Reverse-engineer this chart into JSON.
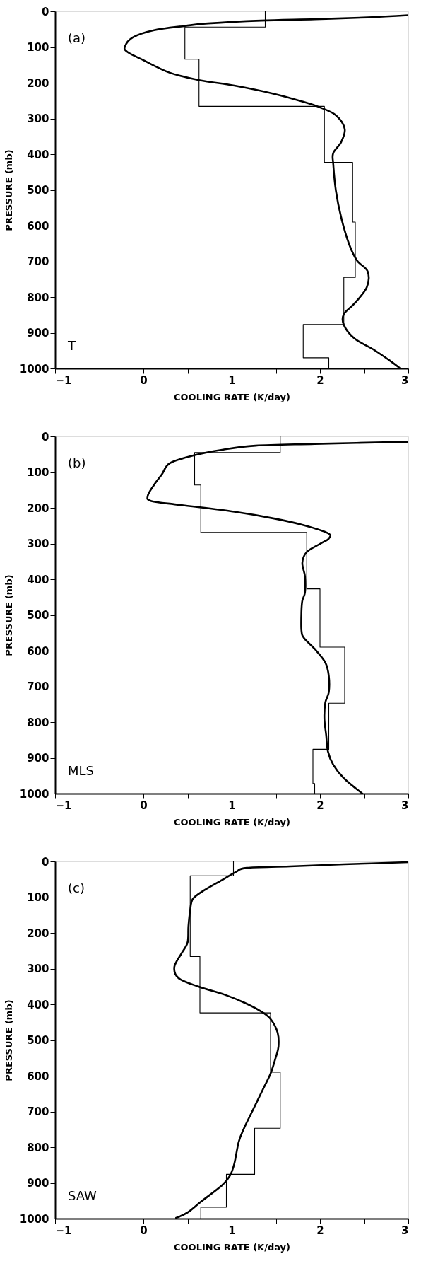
{
  "chart_data": [
    {
      "type": "line",
      "xlabel": "COOLING RATE  (K/day)",
      "ylabel": "PRESSURE  (mb)",
      "annotations": [
        "(a)",
        "T"
      ],
      "xlim": [
        -1,
        3
      ],
      "ylim": [
        1000,
        0
      ],
      "xticks": [
        -1,
        {
          "value": -0.5,
          "label": null
        },
        0,
        {
          "value": 0.5,
          "label": null
        },
        1,
        {
          "value": 1.5,
          "label": null
        },
        2,
        {
          "value": 2.5,
          "label": null
        },
        3
      ],
      "yticks": [
        0,
        100,
        200,
        300,
        400,
        500,
        600,
        700,
        800,
        900,
        1000
      ],
      "line_style": "solid",
      "series": [
        {
          "color": "#000000",
          "x": [
            3.0,
            2.54,
            1.94,
            1.33,
            0.73,
            0.47,
            0.12,
            -0.12,
            -0.21,
            -0.18,
            0.0,
            0.3,
            0.64,
            1.03,
            1.48,
            1.82,
            2.0,
            2.18,
            2.28,
            2.24,
            2.15,
            2.15,
            2.18,
            2.24,
            2.33,
            2.42,
            2.54,
            2.53,
            2.39,
            2.27,
            2.27,
            2.39,
            2.6,
            2.78,
            2.9
          ],
          "values": [
            11,
            17,
            22,
            26,
            34,
            41,
            53,
            73,
            99,
            114,
            137,
            172,
            193,
            208,
            231,
            254,
            269,
            291,
            329,
            366,
            397,
            427,
            502,
            577,
            652,
            698,
            728,
            773,
            818,
            848,
            878,
            916,
            946,
            976,
            998
          ]
        },
        {
          "color": "#000000",
          "x": [
            1.38,
            1.38,
            0.47,
            0.47,
            0.63,
            0.63,
            2.05,
            2.05,
            2.37,
            2.37,
            2.4,
            2.4,
            2.27,
            2.27,
            1.81,
            1.81,
            2.1,
            2.1
          ],
          "values": [
            0,
            44,
            44,
            134,
            134,
            266,
            266,
            423,
            423,
            590,
            590,
            745,
            745,
            877,
            877,
            970,
            970,
            1000
          ]
        }
      ]
    },
    {
      "type": "line",
      "xlabel": "COOLING RATE  (K/day)",
      "ylabel": "PRESSURE  (mb)",
      "annotations": [
        "(b)",
        "MLS"
      ],
      "xlim": [
        -1,
        3
      ],
      "ylim": [
        1000,
        0
      ],
      "xticks": [
        -1,
        {
          "value": -0.5,
          "label": null
        },
        0,
        {
          "value": 0.5,
          "label": null
        },
        1,
        {
          "value": 1.5,
          "label": null
        },
        2,
        {
          "value": 2.5,
          "label": null
        },
        3
      ],
      "yticks": [
        0,
        100,
        200,
        300,
        400,
        500,
        600,
        700,
        800,
        900,
        1000
      ],
      "line_style": "solid",
      "series": [
        {
          "color": "#000000",
          "x": [
            3.0,
            1.94,
            1.27,
            0.88,
            0.57,
            0.3,
            0.21,
            0.12,
            0.05,
            0.09,
            0.42,
            1.03,
            1.48,
            1.82,
            2.09,
            2.1,
            2.0,
            1.85,
            1.8,
            1.83,
            1.83,
            1.8,
            1.79,
            1.79,
            1.82,
            1.94,
            2.06,
            2.1,
            2.1,
            2.06,
            2.05,
            2.07,
            2.09,
            2.15,
            2.27,
            2.48
          ],
          "values": [
            15,
            21,
            26,
            38,
            53,
            75,
            106,
            136,
            166,
            181,
            192,
            211,
            230,
            249,
            271,
            286,
            301,
            324,
            354,
            392,
            437,
            460,
            490,
            543,
            565,
            595,
            633,
            671,
            716,
            746,
            791,
            836,
            882,
            919,
            957,
            1000
          ]
        },
        {
          "color": "#000000",
          "x": [
            1.55,
            1.55,
            0.58,
            0.58,
            0.65,
            0.65,
            1.85,
            1.85,
            2.0,
            2.0,
            2.28,
            2.28,
            2.1,
            2.1,
            1.92,
            1.92,
            1.94,
            1.94
          ],
          "values": [
            0,
            45,
            45,
            136,
            136,
            269,
            269,
            427,
            427,
            590,
            590,
            747,
            747,
            876,
            876,
            972,
            972,
            1000
          ]
        }
      ]
    },
    {
      "type": "line",
      "xlabel": "COOLING RATE  (K/day)",
      "ylabel": "PRESSURE  (mb)",
      "annotations": [
        "(c)",
        "SAW"
      ],
      "xlim": [
        -1,
        3
      ],
      "ylim": [
        1000,
        0
      ],
      "xticks": [
        -1,
        {
          "value": -0.5,
          "label": null
        },
        0,
        {
          "value": 0.5,
          "label": null
        },
        1,
        {
          "value": 1.5,
          "label": null
        },
        2,
        {
          "value": 2.5,
          "label": null
        },
        3
      ],
      "yticks": [
        0,
        100,
        200,
        300,
        400,
        500,
        600,
        700,
        800,
        900,
        1000
      ],
      "line_style": "solid",
      "series": [
        {
          "color": "#000000",
          "x": [
            3.0,
            2.27,
            1.66,
            1.17,
            1.05,
            0.89,
            0.68,
            0.56,
            0.53,
            0.51,
            0.5,
            0.43,
            0.35,
            0.4,
            0.62,
            0.92,
            1.14,
            1.32,
            1.44,
            1.52,
            1.53,
            1.5,
            1.44,
            1.35,
            1.23,
            1.14,
            1.08,
            1.03,
            0.98,
            0.89,
            0.65,
            0.5,
            0.37
          ],
          "values": [
            2,
            8,
            14,
            18,
            29,
            52,
            82,
            105,
            136,
            182,
            227,
            258,
            296,
            327,
            350,
            373,
            395,
            418,
            441,
            479,
            518,
            548,
            594,
            640,
            701,
            747,
            785,
            846,
            880,
            907,
            953,
            983,
            998
          ]
        },
        {
          "color": "#000000",
          "x": [
            1.02,
            1.02,
            0.53,
            0.53,
            0.64,
            0.64,
            1.44,
            1.44,
            1.55,
            1.55,
            1.26,
            1.26,
            0.94,
            0.94,
            0.65,
            0.65
          ],
          "values": [
            0,
            40,
            40,
            266,
            266,
            424,
            424,
            590,
            590,
            747,
            747,
            876,
            876,
            968,
            968,
            1000
          ]
        }
      ]
    }
  ]
}
